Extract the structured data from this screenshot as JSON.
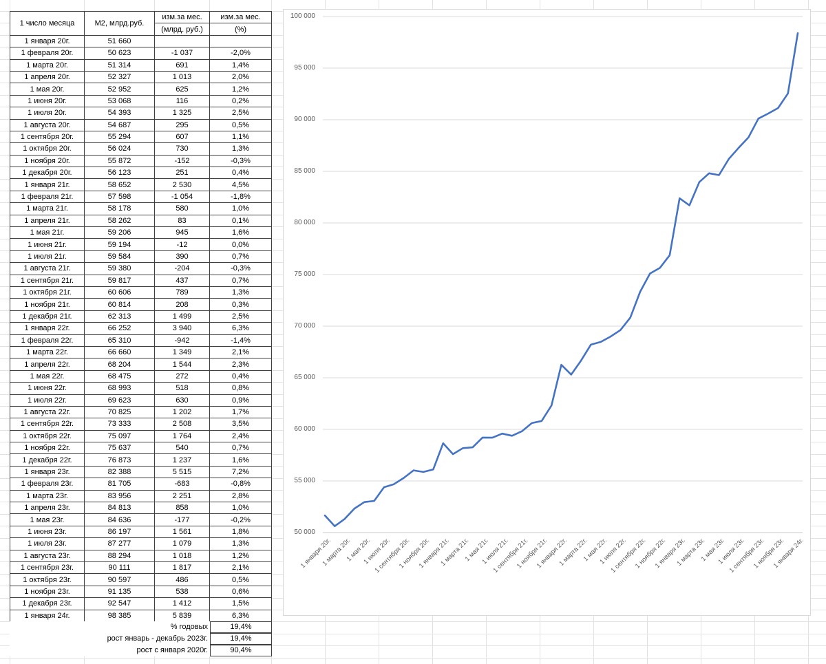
{
  "colors": {
    "series_line": "#4472C4",
    "chart_gridline": "#d9d9d9",
    "chart_axis_line": "#c9c9c9",
    "sheet_gridline": "#e2e2e2",
    "table_border": "#3f3f3f",
    "axis_text": "#595959"
  },
  "table": {
    "headers": {
      "col1": "1 число месяца",
      "col2": "М2, млрд.руб.",
      "col3_line1": "изм.за мес.",
      "col3_line2": "(млрд. руб.)",
      "col4_line1": "изм.за мес.",
      "col4_line2": "(%)"
    },
    "rows": [
      [
        "1 января 20г.",
        "51 660",
        "",
        ""
      ],
      [
        "1 февраля 20г.",
        "50 623",
        "-1 037",
        "-2,0%"
      ],
      [
        "1 марта 20г.",
        "51 314",
        "691",
        "1,4%"
      ],
      [
        "1 апреля 20г.",
        "52 327",
        "1 013",
        "2,0%"
      ],
      [
        "1 мая 20г.",
        "52 952",
        "625",
        "1,2%"
      ],
      [
        "1 июня 20г.",
        "53 068",
        "116",
        "0,2%"
      ],
      [
        "1 июля 20г.",
        "54 393",
        "1 325",
        "2,5%"
      ],
      [
        "1 августа 20г.",
        "54 687",
        "295",
        "0,5%"
      ],
      [
        "1 сентября 20г.",
        "55 294",
        "607",
        "1,1%"
      ],
      [
        "1 октября 20г.",
        "56 024",
        "730",
        "1,3%"
      ],
      [
        "1 ноября 20г.",
        "55 872",
        "-152",
        "-0,3%"
      ],
      [
        "1 декабря 20г.",
        "56 123",
        "251",
        "0,4%"
      ],
      [
        "1 января 21г.",
        "58 652",
        "2 530",
        "4,5%"
      ],
      [
        "1 февраля 21г.",
        "57 598",
        "-1 054",
        "-1,8%"
      ],
      [
        "1 марта 21г.",
        "58 178",
        "580",
        "1,0%"
      ],
      [
        "1 апреля 21г.",
        "58 262",
        "83",
        "0,1%"
      ],
      [
        "1 мая 21г.",
        "59 206",
        "945",
        "1,6%"
      ],
      [
        "1 июня 21г.",
        "59 194",
        "-12",
        "0,0%"
      ],
      [
        "1 июля 21г.",
        "59 584",
        "390",
        "0,7%"
      ],
      [
        "1 августа 21г.",
        "59 380",
        "-204",
        "-0,3%"
      ],
      [
        "1 сентября 21г.",
        "59 817",
        "437",
        "0,7%"
      ],
      [
        "1 октября 21г.",
        "60 606",
        "789",
        "1,3%"
      ],
      [
        "1 ноября 21г.",
        "60 814",
        "208",
        "0,3%"
      ],
      [
        "1 декабря 21г.",
        "62 313",
        "1 499",
        "2,5%"
      ],
      [
        "1 января 22г.",
        "66 252",
        "3 940",
        "6,3%"
      ],
      [
        "1 февраля 22г.",
        "65 310",
        "-942",
        "-1,4%"
      ],
      [
        "1 марта 22г.",
        "66 660",
        "1 349",
        "2,1%"
      ],
      [
        "1 апреля 22г.",
        "68 204",
        "1 544",
        "2,3%"
      ],
      [
        "1 мая 22г.",
        "68 475",
        "272",
        "0,4%"
      ],
      [
        "1 июня 22г.",
        "68 993",
        "518",
        "0,8%"
      ],
      [
        "1 июля 22г.",
        "69 623",
        "630",
        "0,9%"
      ],
      [
        "1 августа 22г.",
        "70 825",
        "1 202",
        "1,7%"
      ],
      [
        "1 сентября 22г.",
        "73 333",
        "2 508",
        "3,5%"
      ],
      [
        "1 октября 22г.",
        "75 097",
        "1 764",
        "2,4%"
      ],
      [
        "1 ноября 22г.",
        "75 637",
        "540",
        "0,7%"
      ],
      [
        "1 декабря 22г.",
        "76 873",
        "1 237",
        "1,6%"
      ],
      [
        "1 января 23г.",
        "82 388",
        "5 515",
        "7,2%"
      ],
      [
        "1 февраля 23г.",
        "81 705",
        "-683",
        "-0,8%"
      ],
      [
        "1 марта 23г.",
        "83 956",
        "2 251",
        "2,8%"
      ],
      [
        "1 апреля 23г.",
        "84 813",
        "858",
        "1,0%"
      ],
      [
        "1 мая 23г.",
        "84 636",
        "-177",
        "-0,2%"
      ],
      [
        "1 июня 23г.",
        "86 197",
        "1 561",
        "1,8%"
      ],
      [
        "1 июля 23г.",
        "87 277",
        "1 079",
        "1,3%"
      ],
      [
        "1 августа 23г.",
        "88 294",
        "1 018",
        "1,2%"
      ],
      [
        "1 сентября 23г.",
        "90 111",
        "1 817",
        "2,1%"
      ],
      [
        "1 октября 23г.",
        "90 597",
        "486",
        "0,5%"
      ],
      [
        "1 ноября 23г.",
        "91 135",
        "538",
        "0,6%"
      ],
      [
        "1 декабря 23г.",
        "92 547",
        "1 412",
        "1,5%"
      ],
      [
        "1 января 24г.",
        "98 385",
        "5 839",
        "6,3%"
      ]
    ],
    "summary": [
      {
        "label": "% годовых",
        "value": "19,4%"
      },
      {
        "label": "рост январь - декабрь 2023г.",
        "value": "19,4%"
      },
      {
        "label": "рост с января 2020г.",
        "value": "90,4%"
      }
    ]
  },
  "chart_data": {
    "type": "line",
    "title": "",
    "legend": false,
    "grid": true,
    "line_color": "#4472C4",
    "categories": [
      "1 января 20г.",
      "1 февраля 20г.",
      "1 марта 20г.",
      "1 апреля 20г.",
      "1 мая 20г.",
      "1 июня 20г.",
      "1 июля 20г.",
      "1 августа 20г.",
      "1 сентября 20г.",
      "1 октября 20г.",
      "1 ноября 20г.",
      "1 декабря 20г.",
      "1 января 21г.",
      "1 февраля 21г.",
      "1 марта 21г.",
      "1 апреля 21г.",
      "1 мая 21г.",
      "1 июня 21г.",
      "1 июля 21г.",
      "1 августа 21г.",
      "1 сентября 21г.",
      "1 октября 21г.",
      "1 ноября 21г.",
      "1 декабря 21г.",
      "1 января 22г.",
      "1 февраля 22г.",
      "1 марта 22г.",
      "1 апреля 22г.",
      "1 мая 22г.",
      "1 июня 22г.",
      "1 июля 22г.",
      "1 августа 22г.",
      "1 сентября 22г.",
      "1 октября 22г.",
      "1 ноября 22г.",
      "1 декабря 22г.",
      "1 января 23г.",
      "1 февраля 23г.",
      "1 марта 23г.",
      "1 апреля 23г.",
      "1 мая 23г.",
      "1 июня 23г.",
      "1 июля 23г.",
      "1 августа 23г.",
      "1 сентября 23г.",
      "1 октября 23г.",
      "1 ноября 23г.",
      "1 декабря 23г.",
      "1 января 24г."
    ],
    "values": [
      51660,
      50623,
      51314,
      52327,
      52952,
      53068,
      54393,
      54687,
      55294,
      56024,
      55872,
      56123,
      58652,
      57598,
      58178,
      58262,
      59206,
      59194,
      59584,
      59380,
      59817,
      60606,
      60814,
      62313,
      66252,
      65310,
      66660,
      68204,
      68475,
      68993,
      69623,
      70825,
      73333,
      75097,
      75637,
      76873,
      82388,
      81705,
      83956,
      84813,
      84636,
      86197,
      87277,
      88294,
      90111,
      90597,
      91135,
      92547,
      98385
    ],
    "ylim": [
      50000,
      100000
    ],
    "ytick_step": 5000,
    "y_ticks": [
      50000,
      55000,
      60000,
      65000,
      70000,
      75000,
      80000,
      85000,
      90000,
      95000,
      100000
    ],
    "y_tick_labels": [
      "50 000",
      "55 000",
      "60 000",
      "65 000",
      "70 000",
      "75 000",
      "80 000",
      "85 000",
      "90 000",
      "95 000",
      "100 000"
    ],
    "x_tick_every": 2,
    "x_tick_labels": [
      "1 января 20г.",
      "1 марта 20г.",
      "1 мая 20г.",
      "1 июля 20г.",
      "1 сентября 20г.",
      "1 ноября 20г.",
      "1 января 21г.",
      "1 марта 21г.",
      "1 мая 21г.",
      "1 июля 21г.",
      "1 сентября 21г.",
      "1 ноября 21г.",
      "1 января 22г.",
      "1 марта 22г.",
      "1 мая 22г.",
      "1 июля 22г.",
      "1 сентября 22г.",
      "1 ноября 22г.",
      "1 января 23г.",
      "1 марта 23г.",
      "1 мая 23г.",
      "1 июля 23г.",
      "1 сентября 23г.",
      "1 ноября 23г.",
      "1 января 24г."
    ]
  }
}
